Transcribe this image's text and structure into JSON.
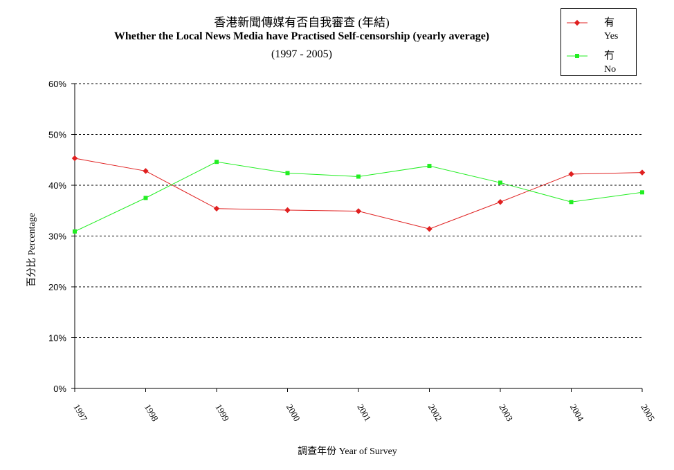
{
  "chart_data": {
    "type": "line",
    "title": "香港新聞傳媒有否自我審查 (年結)",
    "subtitle": "Whether the Local News Media have Practised Self-censorship (yearly average)",
    "subtitle2": "(1997 - 2005)",
    "xlabel": "調查年份 Year of Survey",
    "ylabel": "百分比 Percentage",
    "categories": [
      "1997",
      "1998",
      "1999",
      "2000",
      "2001",
      "2002",
      "2003",
      "2004",
      "2005"
    ],
    "ylim": [
      0,
      60
    ],
    "yticks": [
      "0%",
      "10%",
      "20%",
      "30%",
      "40%",
      "50%",
      "60%"
    ],
    "grid": true,
    "legend_position": "top-right",
    "series": [
      {
        "name_zh": "有",
        "name_en": "Yes",
        "color": "#e02020",
        "marker": "diamond",
        "values": [
          45.3,
          42.8,
          35.4,
          35.1,
          34.9,
          31.4,
          36.7,
          42.2,
          42.5
        ]
      },
      {
        "name_zh": "冇",
        "name_en": "No",
        "color": "#22ee22",
        "marker": "square",
        "values": [
          30.9,
          37.5,
          44.6,
          42.4,
          41.7,
          43.8,
          40.5,
          36.7,
          38.6
        ]
      }
    ]
  }
}
